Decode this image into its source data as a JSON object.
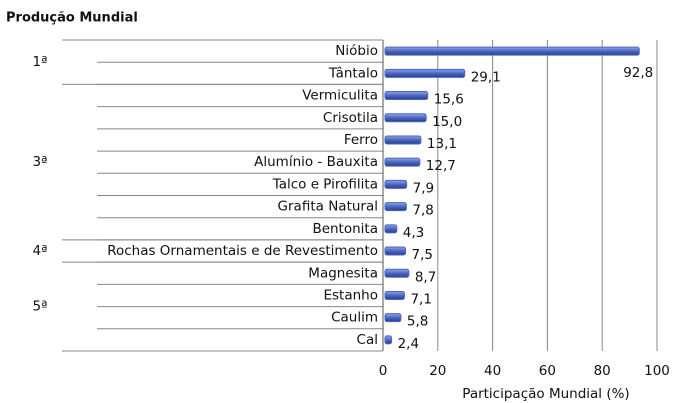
{
  "chart_data": {
    "type": "bar",
    "orientation": "horizontal",
    "title": "Produção Mundial",
    "categories": [
      "Nióbio",
      "Tântalo",
      "Vermiculita",
      "Crisotila",
      "Ferro",
      "Alumínio - Bauxita",
      "Talco e Pirofilita",
      "Grafita Natural",
      "Bentonita",
      "Rochas Ornamentais e de Revestimento",
      "Magnesita",
      "Estanho",
      "Caulim",
      "Cal"
    ],
    "values": [
      92.8,
      29.1,
      15.6,
      15.0,
      13.1,
      12.7,
      7.9,
      7.8,
      4.3,
      7.5,
      8.7,
      7.1,
      5.8,
      2.4
    ],
    "value_labels": [
      "92,8",
      "29,1",
      "15,6",
      "15,0",
      "13,1",
      "12,7",
      "7,9",
      "7,8",
      "4,3",
      "7,5",
      "8,7",
      "7,1",
      "5,8",
      "2,4"
    ],
    "groups": [
      {
        "label": "1ª",
        "size": 2
      },
      {
        "label": "3ª",
        "size": 7
      },
      {
        "label": "4ª",
        "size": 1
      },
      {
        "label": "5ª",
        "size": 4
      }
    ],
    "color": "#4a66c0",
    "xlim": [
      0,
      100
    ],
    "xticks": [
      0,
      20,
      40,
      60,
      80,
      100
    ],
    "xlabel": "Participação Mundial (%)",
    "grid": true
  }
}
